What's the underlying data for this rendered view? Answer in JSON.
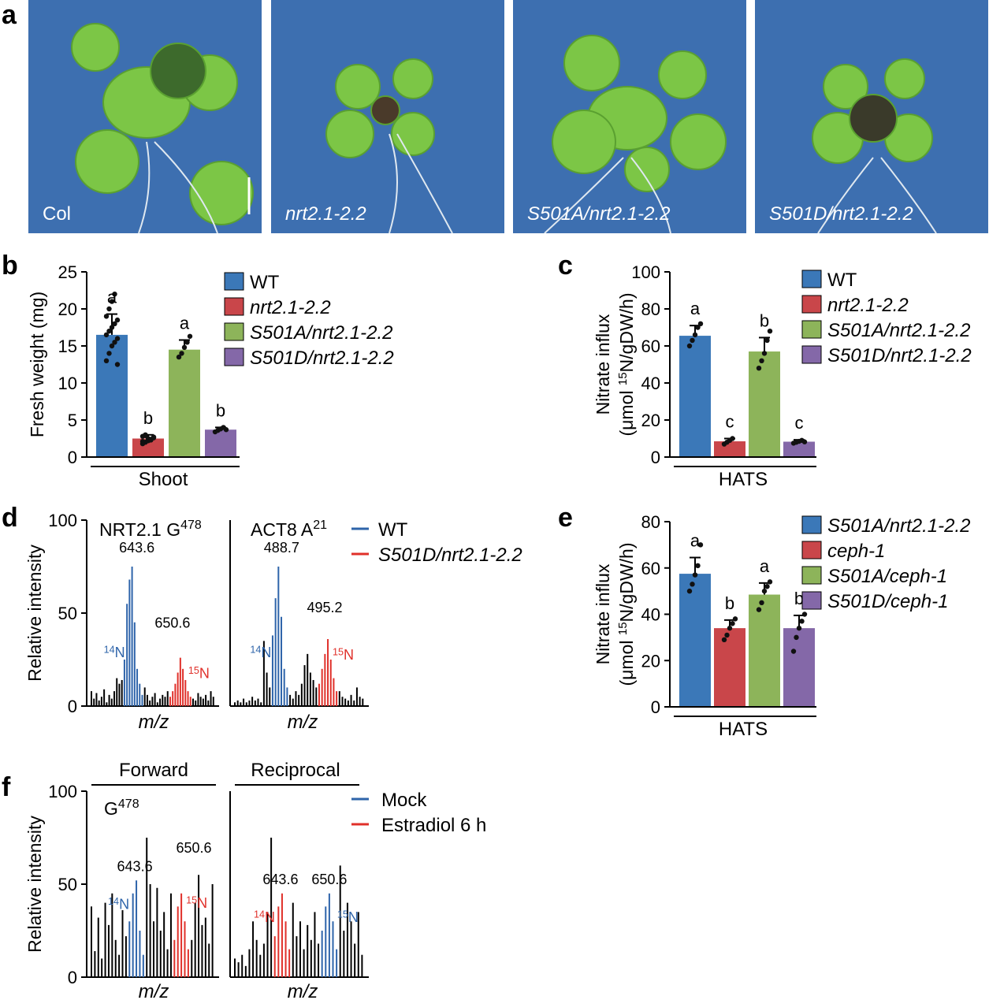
{
  "panel_letters": {
    "a": "a",
    "b": "b",
    "c": "c",
    "d": "d",
    "e": "e",
    "f": "f"
  },
  "photos": [
    {
      "label": "Col",
      "italic": false
    },
    {
      "label": "nrt2.1-2.2",
      "italic": true
    },
    {
      "label": "S501A/nrt2.1-2.2",
      "italic": true
    },
    {
      "label": "S501D/nrt2.1-2.2",
      "italic": true
    }
  ],
  "colors": {
    "wt": "#3b78b8",
    "nrt": "#c9464a",
    "s501a": "#8db45a",
    "s501d": "#8468a8",
    "mock": "#2e64aa",
    "estradiol": "#e0302a",
    "wt_line": "#2e64aa",
    "s501d_line": "#e0302a",
    "plant_green": "#7cc646",
    "background_blue": "#3d6fb0"
  },
  "chart_data": [
    {
      "panel": "b",
      "type": "bar",
      "ylabel": "Fresh weight (mg)",
      "group_label": "Shoot",
      "ylim": [
        0,
        25
      ],
      "yticks": [
        "0",
        "5",
        "10",
        "15",
        "20",
        "25"
      ],
      "legend": [
        "WT",
        "nrt2.1-2.2",
        "S501A/nrt2.1-2.2",
        "S501D/nrt2.1-2.2"
      ],
      "values": [
        16.5,
        2.5,
        14.5,
        3.7
      ],
      "errors": [
        2.8,
        0.5,
        1.3,
        0.3
      ],
      "letters": [
        "a",
        "b",
        "a",
        "b"
      ],
      "points": [
        [
          13,
          14,
          15,
          15.5,
          16,
          16.5,
          17,
          17.5,
          18,
          18.5,
          19,
          20,
          21,
          22,
          12.5
        ],
        [
          1.8,
          2,
          2.2,
          2.4,
          2.6,
          2.8,
          3,
          2.5,
          2.3,
          2.7,
          2.1,
          2.9
        ],
        [
          13.5,
          14,
          14.8,
          15.5,
          16.3
        ],
        [
          3.4,
          3.6,
          3.8,
          4,
          3.7
        ]
      ]
    },
    {
      "panel": "c",
      "type": "bar",
      "ylabel": "Nitrate influx (μmol 15N/gDW/h)",
      "group_label": "HATS",
      "ylim": [
        0,
        100
      ],
      "yticks": [
        "0",
        "20",
        "40",
        "60",
        "80",
        "100"
      ],
      "legend": [
        "WT",
        "nrt2.1-2.2",
        "S501A/nrt2.1-2.2",
        "S501D/nrt2.1-2.2"
      ],
      "values": [
        65.5,
        8.5,
        57,
        8.3
      ],
      "errors": [
        5.5,
        1.5,
        7.5,
        1.0
      ],
      "letters": [
        "a",
        "c",
        "b",
        "c"
      ],
      "points": [
        [
          60,
          63,
          66,
          70,
          72
        ],
        [
          7,
          8,
          9,
          10
        ],
        [
          48,
          52,
          56,
          63,
          68
        ],
        [
          7.5,
          8,
          8.5,
          9,
          8.2
        ]
      ]
    },
    {
      "panel": "e",
      "type": "bar",
      "ylabel": "Nitrate influx (μmol 15N/gDW/h)",
      "group_label": "HATS",
      "ylim": [
        0,
        80
      ],
      "yticks": [
        "0",
        "20",
        "40",
        "60",
        "80"
      ],
      "legend": [
        "S501A/nrt2.1-2.2",
        "ceph-1",
        "S501A/ceph-1",
        "S501D/ceph-1"
      ],
      "values": [
        57.5,
        34,
        48.5,
        34
      ],
      "errors": [
        7,
        3.5,
        5,
        5.5
      ],
      "letters": [
        "a",
        "b",
        "a",
        "b"
      ],
      "points": [
        [
          50,
          53,
          57,
          61,
          70
        ],
        [
          29,
          31,
          34,
          36,
          38
        ],
        [
          42,
          45,
          50,
          52,
          54
        ],
        [
          24,
          30,
          34,
          37,
          40
        ]
      ]
    },
    {
      "panel": "d",
      "type": "spectrum",
      "ylabel": "Relative intensity",
      "xlabel": "m/z",
      "ylim": [
        0,
        100
      ],
      "yticks": [
        "0",
        "50",
        "100"
      ],
      "legend": [
        "WT",
        "S501D/nrt2.1-2.2"
      ],
      "spectra": [
        {
          "title": "NRT2.1 G",
          "title_sup": "478",
          "peak_light": "643.6",
          "peak_heavy": "650.6",
          "label_light": "14N",
          "label_heavy": "15N",
          "black": [
            8,
            4,
            7,
            3,
            5,
            9,
            2,
            6,
            4,
            8,
            15,
            12,
            14,
            10,
            6,
            3,
            5,
            7,
            2,
            4,
            6,
            5,
            8,
            4,
            3,
            7,
            5,
            4,
            6,
            3,
            8,
            5
          ],
          "light": [
            25,
            55,
            68,
            75,
            45,
            20,
            12,
            6
          ],
          "heavy": [
            5,
            8,
            12,
            18,
            26,
            20,
            14,
            8,
            5
          ]
        },
        {
          "title": "ACT8 A",
          "title_sup": "21",
          "peak_light": "488.7",
          "peak_heavy": "495.2",
          "label_light": "14N",
          "label_heavy": "15N",
          "black": [
            2,
            3,
            2,
            4,
            2,
            3,
            5,
            3,
            4,
            2,
            35,
            18,
            10,
            6,
            4,
            8,
            6,
            12,
            22,
            28,
            18,
            14,
            10,
            8,
            5,
            4,
            3,
            6,
            3,
            10,
            5,
            4
          ],
          "light": [
            38,
            58,
            75,
            48,
            20,
            10
          ],
          "heavy": [
            12,
            20,
            28,
            36,
            25,
            15,
            8
          ]
        }
      ]
    },
    {
      "panel": "f",
      "type": "spectrum",
      "ylabel": "Relative intensity",
      "xlabel": "m/z",
      "ylim": [
        0,
        100
      ],
      "yticks": [
        "0",
        "50",
        "100"
      ],
      "legend": [
        "Mock",
        "Estradiol 6 h"
      ],
      "spectra": [
        {
          "title": "Forward",
          "inner_label": "G",
          "inner_label_sup": "478",
          "peak_light": "643.6",
          "peak_heavy": "650.6",
          "label_light": "14N",
          "label_heavy": "15N",
          "black": [
            38,
            14,
            32,
            10,
            40,
            28,
            45,
            20,
            12,
            36,
            22,
            75,
            50,
            30,
            48,
            25,
            35,
            15,
            45,
            20,
            40,
            55,
            28,
            32,
            18,
            50
          ],
          "light": [
            30,
            45,
            52,
            25,
            12
          ],
          "heavy": [
            20,
            38,
            45,
            30,
            15
          ]
        },
        {
          "title": "Reciprocal",
          "inner_label": "",
          "inner_label_sup": "",
          "peak_light": "643.6",
          "peak_heavy": "650.6",
          "label_light": "14N",
          "label_heavy": "15N",
          "black": [
            10,
            8,
            12,
            6,
            15,
            30,
            20,
            12,
            18,
            35,
            75,
            40,
            22,
            30,
            15,
            28,
            20,
            35,
            18,
            60,
            25,
            40,
            30,
            18,
            35,
            12
          ],
          "light": [
            22,
            38,
            45,
            30,
            15
          ],
          "heavy": [
            25,
            38,
            45,
            30,
            15
          ]
        }
      ]
    }
  ],
  "d_panel": {
    "ylabel": "Relative intensity",
    "xlabel": "m/z",
    "legend_wt": "WT",
    "legend_s501d": "S501D/nrt2.1-2.2"
  },
  "f_panel": {
    "ylabel": "Relative intensity",
    "xlabel": "m/z",
    "legend_mock": "Mock",
    "legend_estradiol": "Estradiol 6 h"
  }
}
